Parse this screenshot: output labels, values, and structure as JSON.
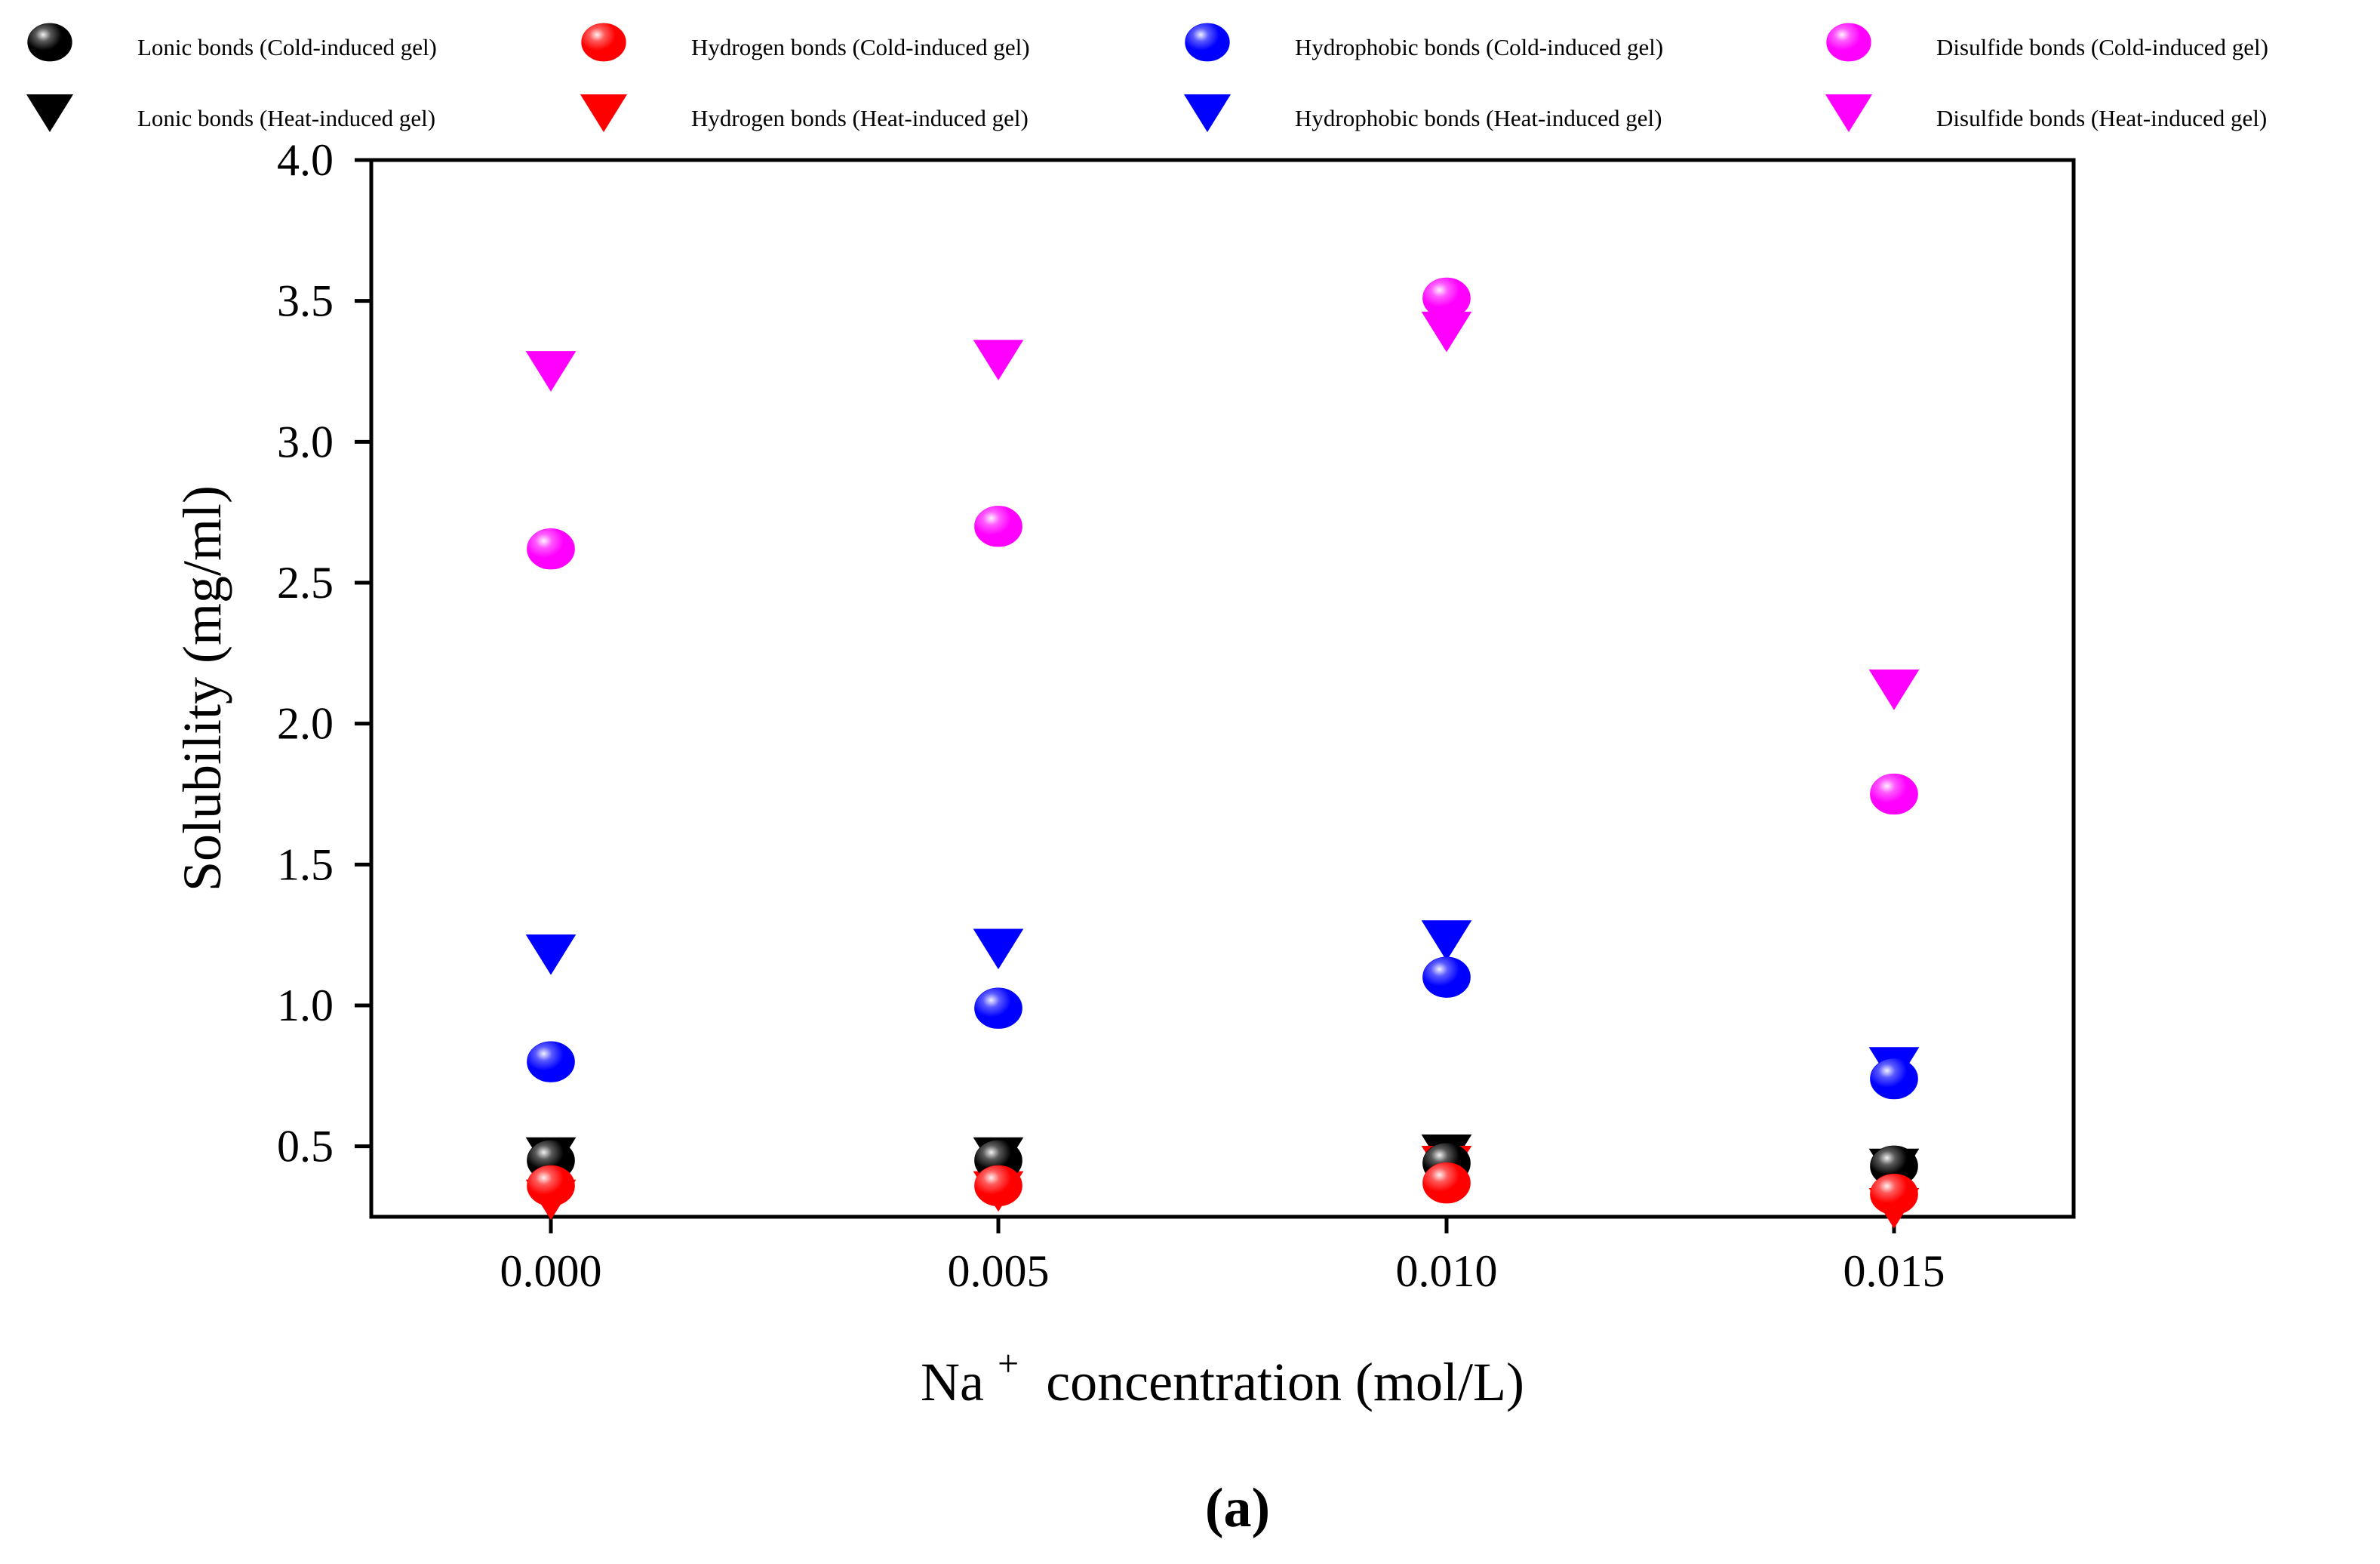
{
  "chart_data": {
    "type": "scatter",
    "xlabel": "Na",
    "xlabel_superscript": "+",
    "xlabel_suffix": " concentration (mol/L)",
    "ylabel": "Solubility (mg/ml)",
    "panel_label": "(a)",
    "categories": [
      "0.000",
      "0.005",
      "0.010",
      "0.015"
    ],
    "ylim": [
      0.25,
      4.0
    ],
    "yticks": [
      "0.5",
      "1.0",
      "1.5",
      "2.0",
      "2.5",
      "3.0",
      "3.5",
      "4.0"
    ],
    "ytick_values": [
      0.5,
      1.0,
      1.5,
      2.0,
      2.5,
      3.0,
      3.5,
      4.0
    ],
    "grid": false,
    "legend_position": "top",
    "series": [
      {
        "name": "Lonic bonds (Cold-induced gel)",
        "marker": "sphere",
        "color": "#000000",
        "values": [
          0.45,
          0.45,
          0.44,
          0.43
        ]
      },
      {
        "name": "Hydrogen bonds (Cold-induced gel)",
        "marker": "sphere",
        "color": "#ff0000",
        "values": [
          0.36,
          0.36,
          0.37,
          0.33
        ]
      },
      {
        "name": "Hydrophobic bonds (Cold-induced gel)",
        "marker": "sphere",
        "color": "#0000ff",
        "values": [
          0.8,
          0.99,
          1.1,
          0.74
        ]
      },
      {
        "name": "Disulfide bonds (Cold-induced gel)",
        "marker": "sphere",
        "color": "#ff00ff",
        "values": [
          2.62,
          2.7,
          3.51,
          1.75
        ]
      },
      {
        "name": "Lonic bonds (Heat-induced gel)",
        "marker": "triangle-down",
        "color": "#000000",
        "values": [
          0.46,
          0.46,
          0.47,
          0.42
        ]
      },
      {
        "name": "Hydrogen bonds (Heat-induced gel)",
        "marker": "triangle-down",
        "color": "#ff0000",
        "values": [
          0.31,
          0.34,
          0.43,
          0.28
        ]
      },
      {
        "name": "Hydrophobic bonds (Heat-induced gel)",
        "marker": "triangle-down",
        "color": "#0000ff",
        "values": [
          1.18,
          1.2,
          1.23,
          0.78
        ]
      },
      {
        "name": "Disulfide bonds (Heat-induced gel)",
        "marker": "triangle-down",
        "color": "#ff00ff",
        "values": [
          3.25,
          3.29,
          3.39,
          2.12
        ]
      }
    ]
  }
}
